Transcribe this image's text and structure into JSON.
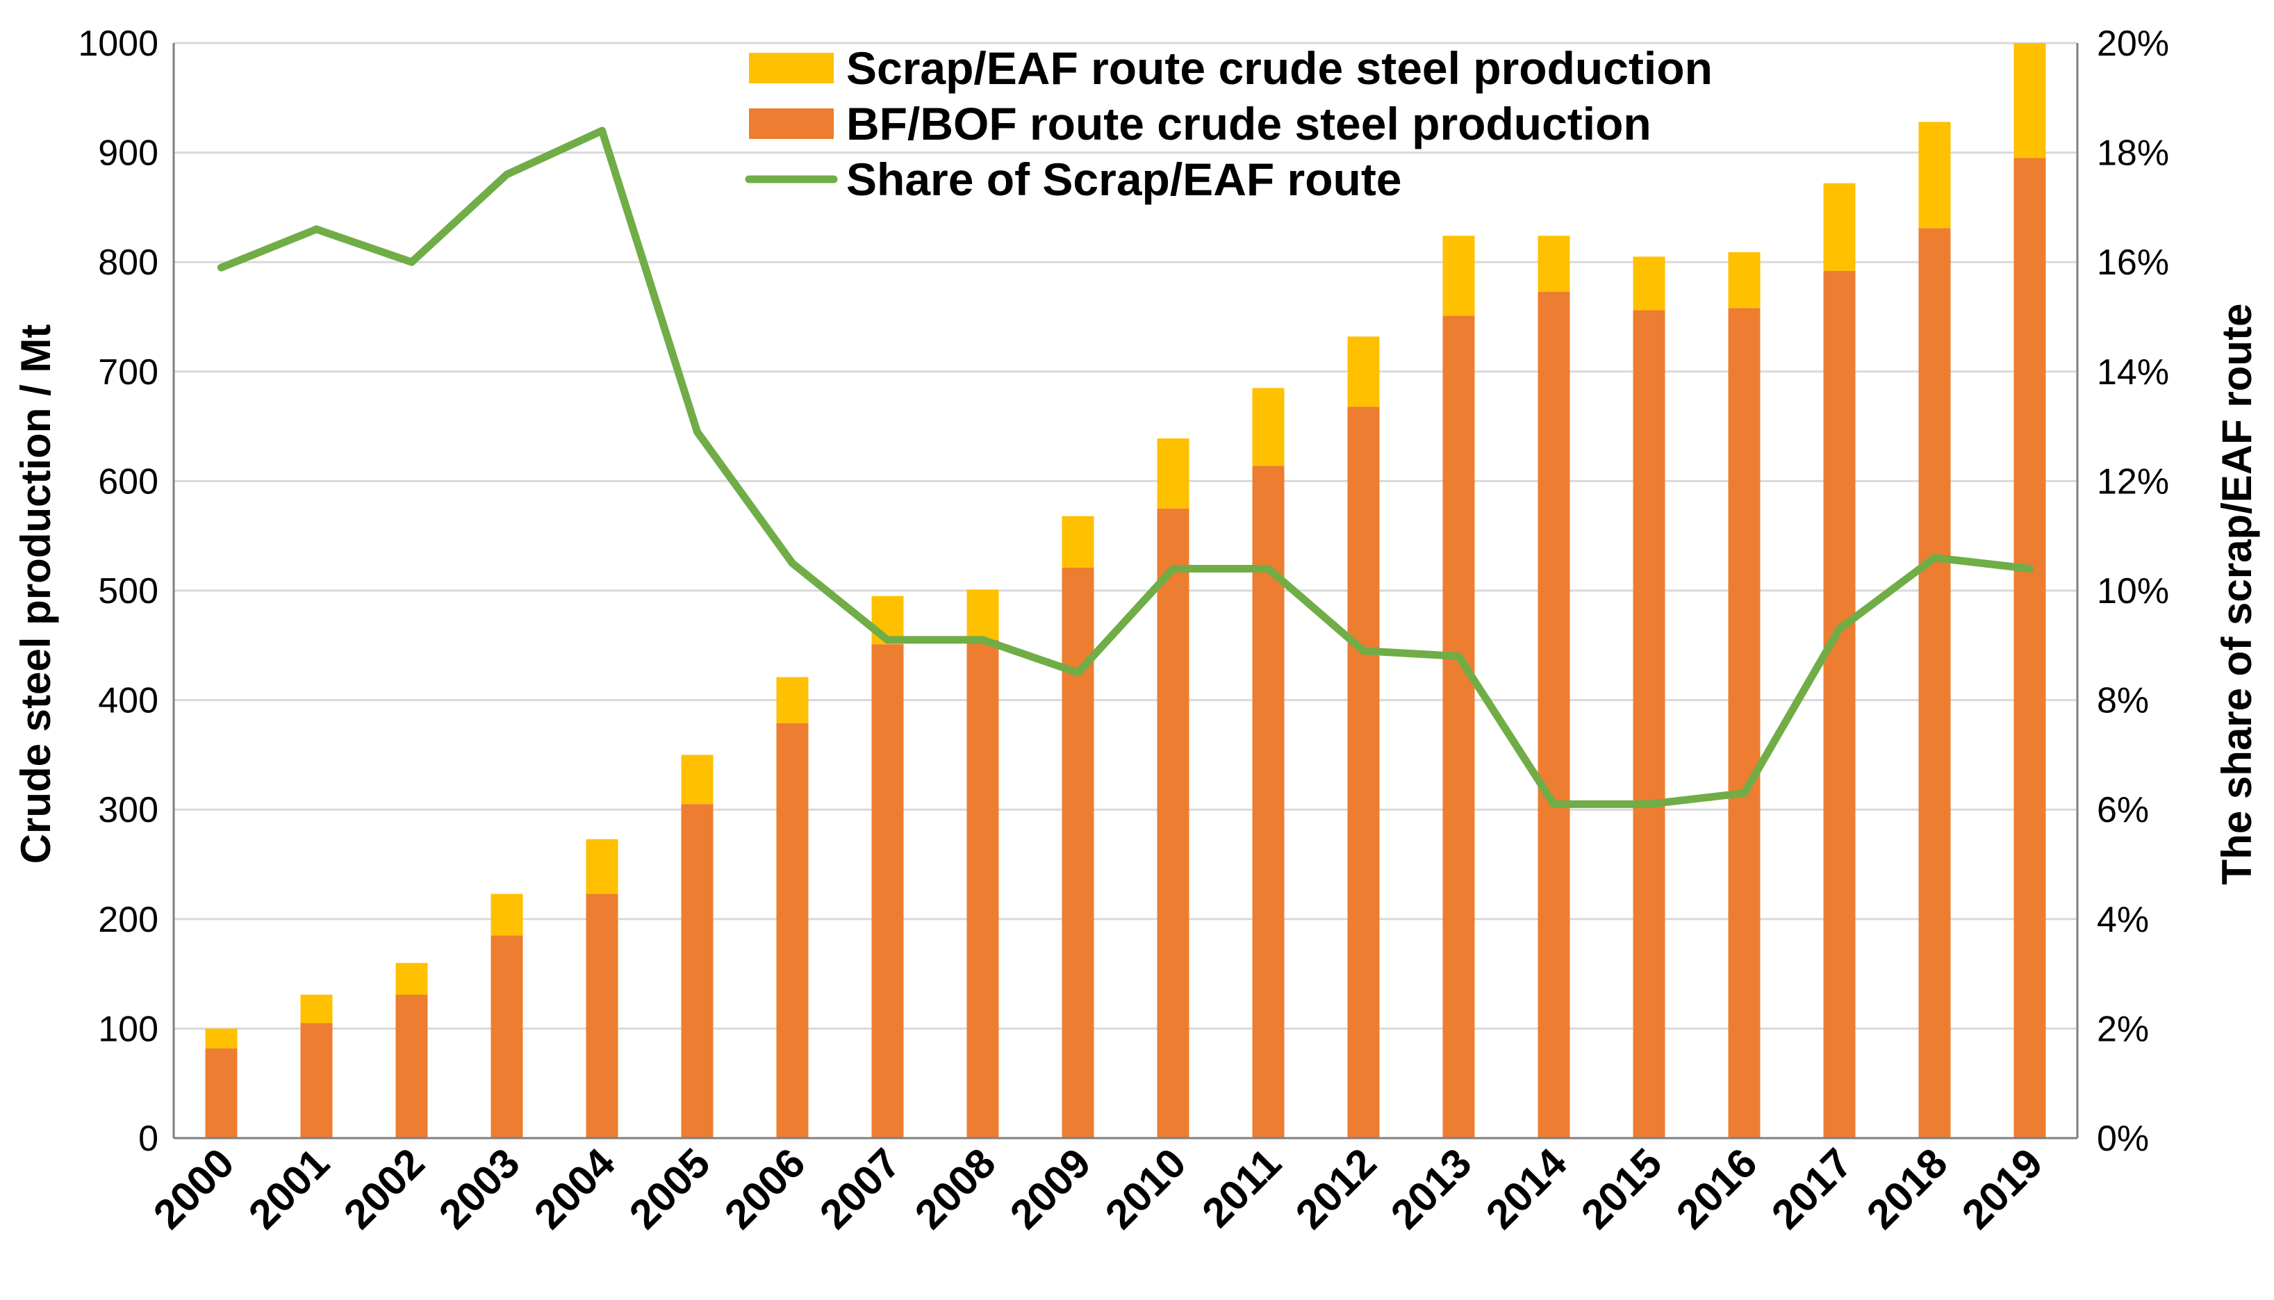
{
  "chart_data": {
    "type": "bar",
    "stacked": true,
    "title": "",
    "categories": [
      "2000",
      "2001",
      "2002",
      "2003",
      "2004",
      "2005",
      "2006",
      "2007",
      "2008",
      "2009",
      "2010",
      "2011",
      "2012",
      "2013",
      "2014",
      "2015",
      "2016",
      "2017",
      "2018",
      "2019"
    ],
    "series": [
      {
        "name": "BF/BOF route crude steel production",
        "kind": "bar",
        "axis": "left",
        "color": "#ED7D31",
        "values": [
          82,
          105,
          131,
          185,
          223,
          305,
          379,
          451,
          455,
          521,
          575,
          614,
          668,
          751,
          773,
          756,
          758,
          792,
          831,
          895
        ]
      },
      {
        "name": "Scrap/EAF route crude steel production",
        "kind": "bar",
        "axis": "left",
        "color": "#FFC000",
        "values": [
          18,
          26,
          29,
          38,
          50,
          45,
          42,
          44,
          46,
          47,
          64,
          71,
          64,
          73,
          51,
          49,
          51,
          80,
          97,
          105
        ]
      },
      {
        "name": "Share of Scrap/EAF route",
        "kind": "line",
        "axis": "right",
        "color": "#70AD47",
        "values": [
          15.9,
          16.6,
          16.0,
          17.6,
          18.4,
          12.9,
          10.5,
          9.1,
          9.1,
          8.5,
          10.4,
          10.4,
          8.9,
          8.8,
          6.1,
          6.1,
          6.3,
          9.3,
          10.6,
          10.4
        ]
      }
    ],
    "ylabel": "Crude steel production  / Mt",
    "ylabel_right": "The share of scrap/EAF route",
    "xlabel": "",
    "ylim": [
      0,
      1000
    ],
    "ylim_right": [
      0,
      20
    ],
    "yticks": [
      "0",
      "100",
      "200",
      "300",
      "400",
      "500",
      "600",
      "700",
      "800",
      "900",
      "1000"
    ],
    "yticks_right": [
      "0%",
      "2%",
      "4%",
      "6%",
      "8%",
      "10%",
      "12%",
      "14%",
      "16%",
      "18%",
      "20%"
    ],
    "grid": true,
    "legend_position": "top-center",
    "legend_order": [
      "Scrap/EAF route crude steel production",
      "BF/BOF route crude steel production",
      "Share of Scrap/EAF route"
    ]
  }
}
